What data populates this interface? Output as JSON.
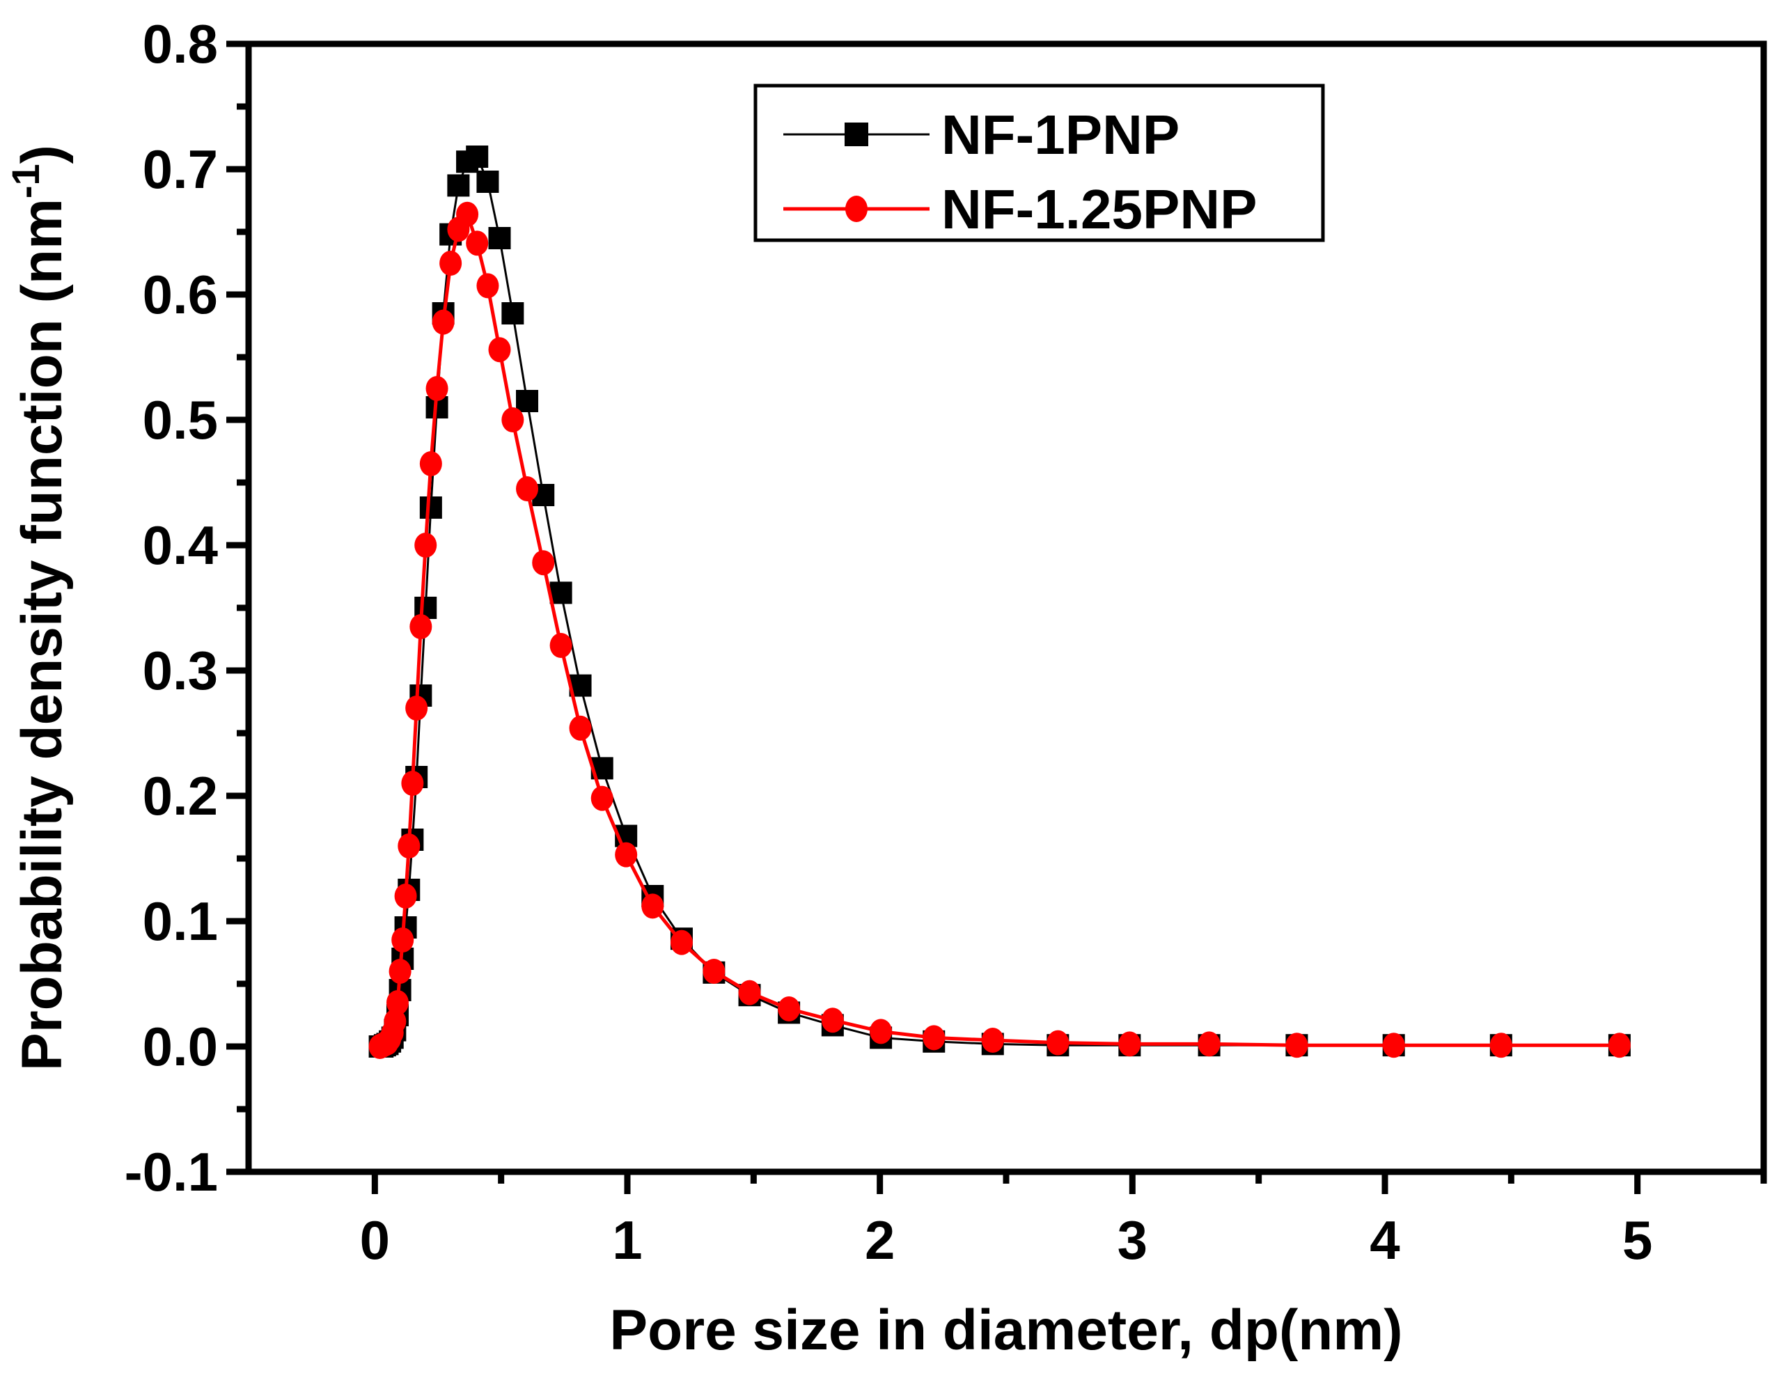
{
  "chart_data": {
    "type": "line",
    "title": "",
    "xlabel": "Pore size in diameter, dp(nm)",
    "ylabel": {
      "main": "Probability density function (nm",
      "sup": "-1",
      "end": ")"
    },
    "xlim": [
      -0.5,
      5.5
    ],
    "ylim": [
      -0.1,
      0.8
    ],
    "x_major_ticks": [
      0,
      1,
      2,
      3,
      4,
      5
    ],
    "x_tick_labels": [
      "0",
      "1",
      "2",
      "3",
      "4",
      "5"
    ],
    "x_minor_step": 0.5,
    "y_major_step": 0.1,
    "y_minor_step": 0.05,
    "y_tick_labels": [
      "-0.1",
      "0.0",
      "0.1",
      "0.2",
      "0.3",
      "0.4",
      "0.5",
      "0.6",
      "0.7",
      "0.8"
    ],
    "grid": false,
    "legend_position": "upper-center",
    "background_color": "#ffffff",
    "axis_color": "#000000",
    "x": [
      0.02,
      0.03,
      0.04,
      0.05,
      0.06,
      0.07,
      0.08,
      0.09,
      0.1,
      0.11,
      0.122,
      0.135,
      0.149,
      0.165,
      0.182,
      0.201,
      0.222,
      0.246,
      0.271,
      0.3,
      0.331,
      0.366,
      0.405,
      0.447,
      0.494,
      0.546,
      0.603,
      0.667,
      0.737,
      0.814,
      0.9,
      0.995,
      1.1,
      1.215,
      1.343,
      1.484,
      1.64,
      1.813,
      2.004,
      2.214,
      2.447,
      2.705,
      2.989,
      3.304,
      3.651,
      4.035,
      4.46,
      4.929
    ],
    "series": [
      {
        "name": "NF-1PNP",
        "color": "#000000",
        "marker": "square",
        "line_width": 3,
        "values": [
          0.0,
          0.0,
          0.001,
          0.002,
          0.004,
          0.007,
          0.013,
          0.025,
          0.045,
          0.07,
          0.095,
          0.125,
          0.165,
          0.215,
          0.28,
          0.35,
          0.43,
          0.51,
          0.585,
          0.648,
          0.687,
          0.706,
          0.71,
          0.69,
          0.645,
          0.585,
          0.515,
          0.44,
          0.362,
          0.288,
          0.222,
          0.168,
          0.12,
          0.086,
          0.059,
          0.041,
          0.027,
          0.017,
          0.007,
          0.004,
          0.002,
          0.001,
          0.001,
          0.001,
          0.001,
          0.001,
          0.001,
          0.001
        ]
      },
      {
        "name": "NF-1.25PNP",
        "color": "#ff0000",
        "marker": "circle",
        "line_width": 5,
        "values": [
          0.0,
          0.001,
          0.002,
          0.003,
          0.006,
          0.011,
          0.02,
          0.035,
          0.06,
          0.085,
          0.12,
          0.16,
          0.21,
          0.27,
          0.335,
          0.4,
          0.465,
          0.525,
          0.578,
          0.625,
          0.652,
          0.664,
          0.641,
          0.607,
          0.556,
          0.5,
          0.445,
          0.386,
          0.32,
          0.254,
          0.198,
          0.153,
          0.112,
          0.083,
          0.06,
          0.043,
          0.03,
          0.021,
          0.012,
          0.007,
          0.005,
          0.003,
          0.002,
          0.002,
          0.001,
          0.001,
          0.001,
          0.001
        ]
      }
    ]
  }
}
